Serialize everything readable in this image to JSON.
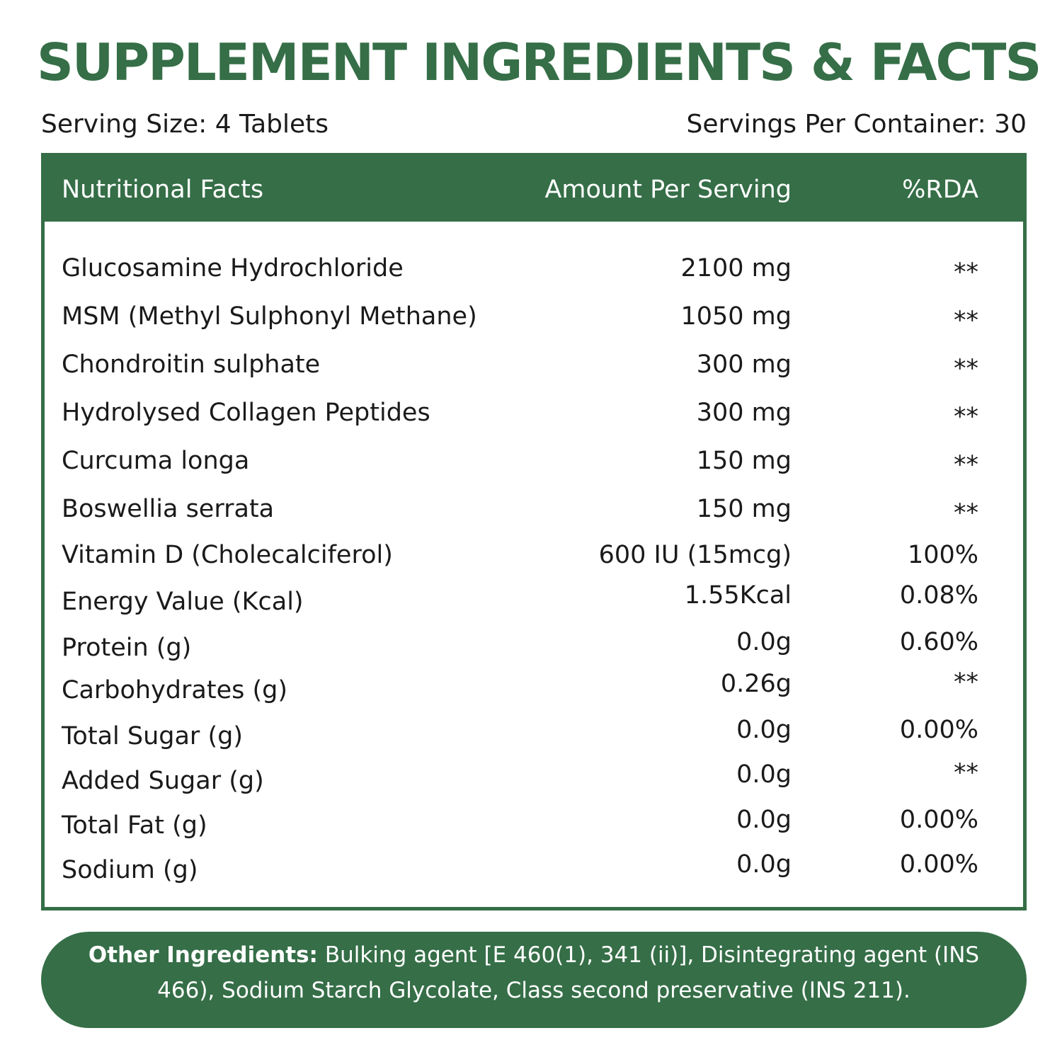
{
  "title": "SUPPLEMENT INGREDIENTS & FACTS",
  "serving_size": "Serving Size: 4 Tablets",
  "servings_per_container": "Servings Per Container: 30",
  "table": {
    "headers": {
      "name": "Nutritional Facts",
      "amount": "Amount Per Serving",
      "rda": "%RDA"
    },
    "rows": [
      {
        "name": "Glucosamine Hydrochloride",
        "amount": "2100 mg",
        "rda": "**"
      },
      {
        "name": "MSM (Methyl Sulphonyl Methane)",
        "amount": "1050 mg",
        "rda": "**"
      },
      {
        "name": "Chondroitin sulphate",
        "amount": "300 mg",
        "rda": "**"
      },
      {
        "name": "Hydrolysed Collagen Peptides",
        "amount": "300 mg",
        "rda": "**"
      },
      {
        "name": "Curcuma longa",
        "amount": "150 mg",
        "rda": "**"
      },
      {
        "name": "Boswellia serrata",
        "amount": "150 mg",
        "rda": "**"
      },
      {
        "name": "Vitamin D (Cholecalciferol)",
        "amount": "600 IU (15mcg)",
        "rda": "100%"
      },
      {
        "name": "Energy Value (Kcal)",
        "amount": "1.55Kcal",
        "rda": "0.08%"
      },
      {
        "name": "Protein (g)",
        "amount": "0.0g",
        "rda": "0.60%"
      },
      {
        "name": "Carbohydrates (g)",
        "amount": "0.26g",
        "rda": "**"
      },
      {
        "name": "Total Sugar (g)",
        "amount": "0.0g",
        "rda": "0.00%"
      },
      {
        "name": "Added Sugar (g)",
        "amount": "0.0g",
        "rda": "**"
      },
      {
        "name": "Total Fat (g)",
        "amount": "0.0g",
        "rda": "0.00%"
      },
      {
        "name": "Sodium (g)",
        "amount": "0.0g",
        "rda": "0.00%"
      }
    ]
  },
  "other_ingredients": {
    "label": "Other Ingredients:",
    "text": " Bulking agent [E 460(1), 341 (ii)], Disintegrating agent (INS 466), Sodium Starch Glycolate, Class second preservative (INS 211)."
  },
  "colors": {
    "brand_green": "#356e47",
    "text": "#1a1a1a",
    "background": "#ffffff"
  }
}
